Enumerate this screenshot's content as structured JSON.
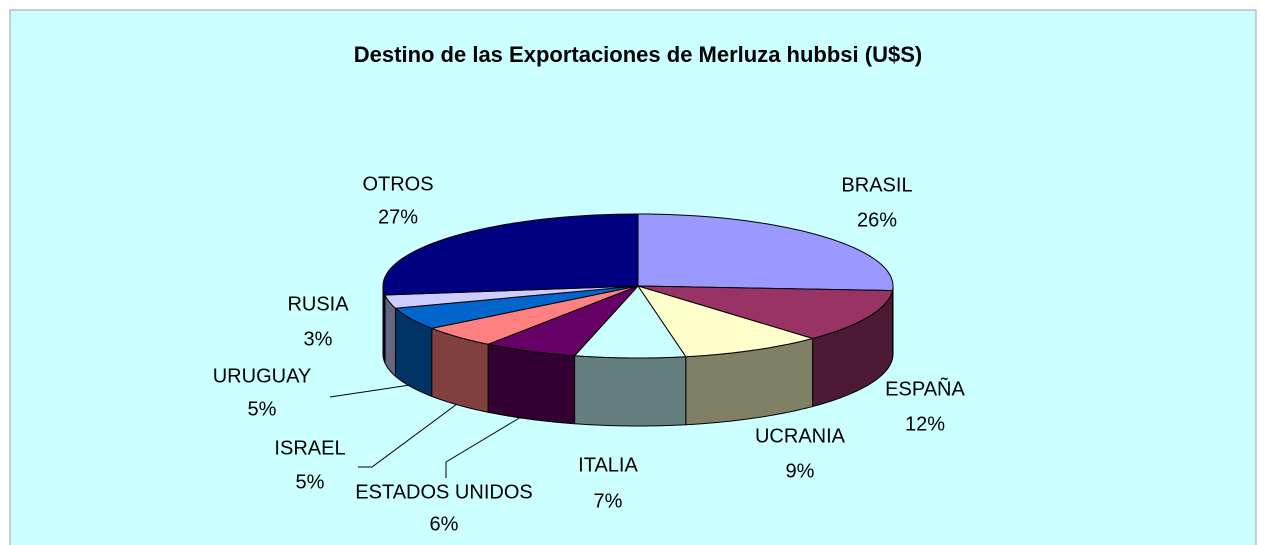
{
  "chart_data": {
    "type": "pie3d",
    "title": "Destino de las Exportaciones de Merluza hubbsi (U$S)",
    "categories": [
      "BRASIL",
      "ESPAÑA",
      "UCRANIA",
      "ITALIA",
      "ESTADOS UNIDOS",
      "ISRAEL",
      "URUGUAY",
      "RUSIA",
      "OTROS"
    ],
    "values": [
      26,
      12,
      9,
      7,
      6,
      5,
      5,
      3,
      27
    ],
    "value_labels": [
      "26%",
      "12%",
      "9%",
      "7%",
      "6%",
      "5%",
      "5%",
      "3%",
      "27%"
    ],
    "colors": [
      "#9999ff",
      "#993366",
      "#ffffcc",
      "#ccffff",
      "#660066",
      "#ff8080",
      "#0066cc",
      "#ccccff",
      "#000080"
    ]
  }
}
